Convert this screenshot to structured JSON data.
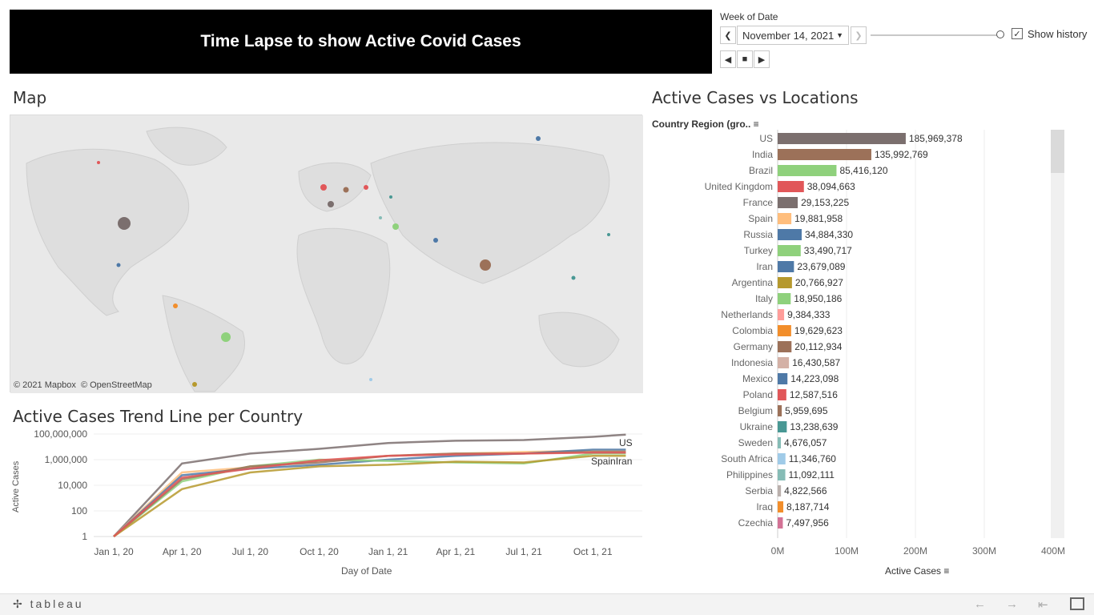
{
  "header": {
    "title": "Time Lapse to show Active Covid Cases"
  },
  "controls": {
    "week_label": "Week of Date",
    "selected_week": "November 14, 2021",
    "show_history_label": "Show history",
    "show_history_checked": true
  },
  "map": {
    "title": "Map",
    "attribution_1": "© 2021 Mapbox",
    "attribution_2": "© OpenStreetMap"
  },
  "trend": {
    "title": "Active Cases Trend Line per Country",
    "ylabel": "Active Cases",
    "xlabel": "Day of Date",
    "y_ticks": [
      "100,000,000",
      "1,000,000",
      "10,000",
      "100",
      "1"
    ],
    "x_ticks": [
      "Jan 1, 20",
      "Apr 1, 20",
      "Jul 1, 20",
      "Oct 1, 20",
      "Jan 1, 21",
      "Apr 1, 21",
      "Jul 1, 21",
      "Oct 1, 21"
    ],
    "end_label_us": "US",
    "end_label_spain": "Spain",
    "end_label_iran": "Iran"
  },
  "bars": {
    "title": "Active Cases vs Locations",
    "dimension_label": "Country Region (gro..",
    "measure_label": "Active Cases",
    "x_ticks": [
      "0M",
      "100M",
      "200M",
      "300M",
      "400M"
    ]
  },
  "chart_data": [
    {
      "type": "bar",
      "title": "Active Cases vs Locations",
      "xlabel": "Active Cases",
      "ylabel": "Country Region (gro..",
      "xlim": [
        0,
        400000000
      ],
      "categories": [
        "US",
        "India",
        "Brazil",
        "United Kingdom",
        "France",
        "Spain",
        "Russia",
        "Turkey",
        "Iran",
        "Argentina",
        "Italy",
        "Netherlands",
        "Colombia",
        "Germany",
        "Indonesia",
        "Mexico",
        "Poland",
        "Belgium",
        "Ukraine",
        "Sweden",
        "South Africa",
        "Philippines",
        "Serbia",
        "Iraq",
        "Czechia"
      ],
      "values": [
        185969378,
        135992769,
        85416120,
        38094663,
        29153225,
        19881958,
        34884330,
        33490717,
        23679089,
        20766927,
        18950186,
        9384333,
        19629623,
        20112934,
        16430587,
        14223098,
        12587516,
        5959695,
        13238639,
        4676057,
        11346760,
        11092111,
        4822566,
        8187714,
        7497956
      ],
      "labels": [
        "185,969,378",
        "135,992,769",
        "85,416,120",
        "38,094,663",
        "29,153,225",
        "19,881,958",
        "34,884,330",
        "33,490,717",
        "23,679,089",
        "20,766,927",
        "18,950,186",
        "9,384,333",
        "19,629,623",
        "20,112,934",
        "16,430,587",
        "14,223,098",
        "12,587,516",
        "5,959,695",
        "13,238,639",
        "4,676,057",
        "11,346,760",
        "11,092,111",
        "4,822,566",
        "8,187,714",
        "7,497,956"
      ],
      "colors": [
        "#7b6f6e",
        "#9c7159",
        "#8fd17c",
        "#e15759",
        "#7b6f6e",
        "#ffbe7d",
        "#4e79a7",
        "#8fd17c",
        "#4e79a7",
        "#b6992d",
        "#8fd17c",
        "#ff9d9a",
        "#f28e2b",
        "#9c7159",
        "#d4b1a6",
        "#4e79a7",
        "#e15759",
        "#9c7159",
        "#499894",
        "#86bcb6",
        "#a0cbe8",
        "#86bcb6",
        "#bab0ac",
        "#f28e2b",
        "#d37295"
      ]
    },
    {
      "type": "line",
      "title": "Active Cases Trend Line per Country",
      "xlabel": "Day of Date",
      "ylabel": "Active Cases",
      "y_scale": "log",
      "ylim": [
        1,
        100000000
      ],
      "x": [
        "2020-01-01",
        "2020-04-01",
        "2020-07-01",
        "2020-10-01",
        "2021-01-01",
        "2021-04-01",
        "2021-07-01",
        "2021-10-01",
        "2021-11-14"
      ],
      "series": [
        {
          "name": "US",
          "color": "#7b6f6e",
          "values": [
            1,
            500000,
            3000000,
            7000000,
            20000000,
            30000000,
            34000000,
            60000000,
            90000000
          ]
        },
        {
          "name": "Spain",
          "color": "#ffbe7d",
          "values": [
            1,
            100000,
            250000,
            800000,
            2000000,
            3000000,
            4000000,
            5000000,
            5000000
          ]
        },
        {
          "name": "Iran",
          "color": "#4e79a7",
          "values": [
            1,
            60000,
            200000,
            400000,
            1000000,
            2000000,
            3000000,
            6000000,
            6000000
          ]
        },
        {
          "color": "#8fd17c",
          "values": [
            1,
            20000,
            300000,
            1000000,
            800000,
            600000,
            500000,
            3000000,
            3000000
          ]
        },
        {
          "color": "#9c7159",
          "values": [
            1,
            30000,
            300000,
            600000,
            2000000,
            3000000,
            3000000,
            4000000,
            4000000
          ]
        },
        {
          "color": "#b6992d",
          "values": [
            1,
            5000,
            100000,
            300000,
            400000,
            700000,
            600000,
            2000000,
            2000000
          ]
        },
        {
          "color": "#e15759",
          "values": [
            1,
            40000,
            200000,
            900000,
            2000000,
            2500000,
            3000000,
            3500000,
            3500000
          ]
        }
      ]
    }
  ]
}
